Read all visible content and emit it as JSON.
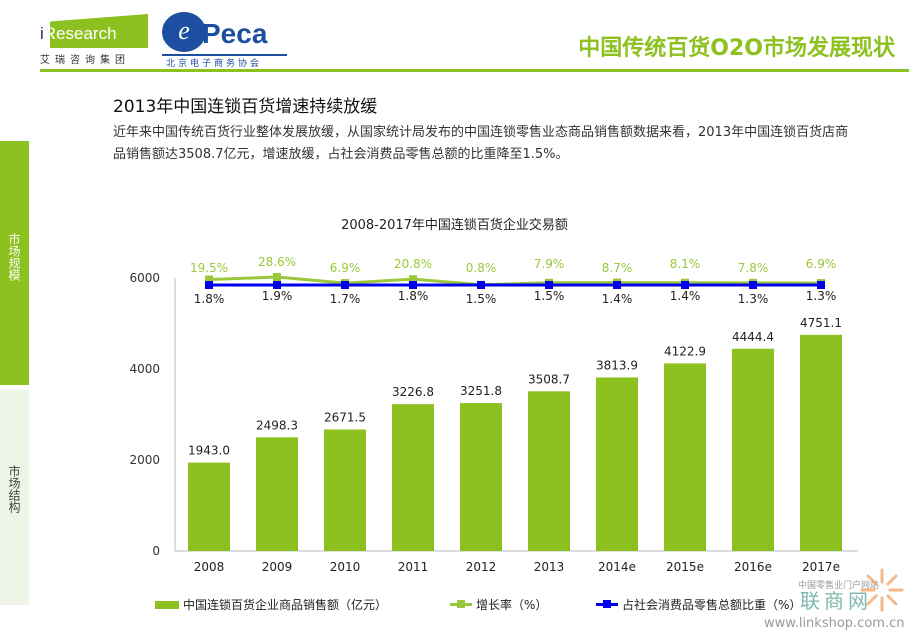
{
  "header": {
    "logo_iresearch": "iResearch",
    "logo_iresearch_cn": "艾瑞咨询集团",
    "logo_peca": "Peca",
    "logo_peca_cn": "北京电子商务协会",
    "title": "中国传统百货O2O市场发展现状"
  },
  "sidebar": {
    "items": [
      {
        "label": "市场规模",
        "active": true
      },
      {
        "label": "市场结构",
        "active": false
      }
    ]
  },
  "section": {
    "title": "2013年中国连锁百货增速持续放缓",
    "body": "近年来中国传统百货行业整体发展放缓，从国家统计局发布的中国连锁零售业态商品销售额数据来看，2013年中国连锁百货店商品销售额达3508.7亿元，增速放缓，占社会消费品零售总额的比重降至1.5%。"
  },
  "colors": {
    "brand": "#8cc11f",
    "bar": "#8cc11f",
    "growth_line": "#9bc83a",
    "share_line": "#0000ee",
    "side_light": "#eef4e6"
  },
  "chart_data": {
    "type": "bar",
    "title": "2008-2017年中国连锁百货企业交易额",
    "categories": [
      "2008",
      "2009",
      "2010",
      "2011",
      "2012",
      "2013",
      "2014e",
      "2015e",
      "2016e",
      "2017e"
    ],
    "ylim": [
      0,
      6000
    ],
    "yticks": [
      "0",
      "2000",
      "4000",
      "6000"
    ],
    "legend_position": "bottom",
    "grid": false,
    "series": [
      {
        "name": "中国连锁百货企业商品销售额（亿元）",
        "kind": "bar",
        "values": [
          1943.0,
          2498.3,
          2671.5,
          3226.8,
          3251.8,
          3508.7,
          3813.9,
          4122.9,
          4444.4,
          4751.1
        ],
        "labels": [
          "1943.0",
          "2498.3",
          "2671.5",
          "3226.8",
          "3251.8",
          "3508.7",
          "3813.9",
          "4122.9",
          "4444.4",
          "4751.1"
        ]
      },
      {
        "name": "增长率（%）",
        "kind": "line",
        "values": [
          19.5,
          28.6,
          6.9,
          20.8,
          0.8,
          7.9,
          8.7,
          8.1,
          7.8,
          6.9
        ],
        "labels": [
          "19.5%",
          "28.6%",
          "6.9%",
          "20.8%",
          "0.8%",
          "7.9%",
          "8.7%",
          "8.1%",
          "7.8%",
          "6.9%"
        ]
      },
      {
        "name": "占社会消费品零售总额比重（%）",
        "kind": "line",
        "values": [
          1.8,
          1.9,
          1.7,
          1.8,
          1.5,
          1.5,
          1.4,
          1.4,
          1.3,
          1.3
        ],
        "labels": [
          "1.8%",
          "1.9%",
          "1.7%",
          "1.8%",
          "1.5%",
          "1.5%",
          "1.4%",
          "1.4%",
          "1.3%",
          "1.3%"
        ]
      }
    ]
  },
  "watermark": {
    "cn_small": "中国零售业门户网站",
    "cn_big": "联商网",
    "url": "www.linkshop.com.cn"
  }
}
